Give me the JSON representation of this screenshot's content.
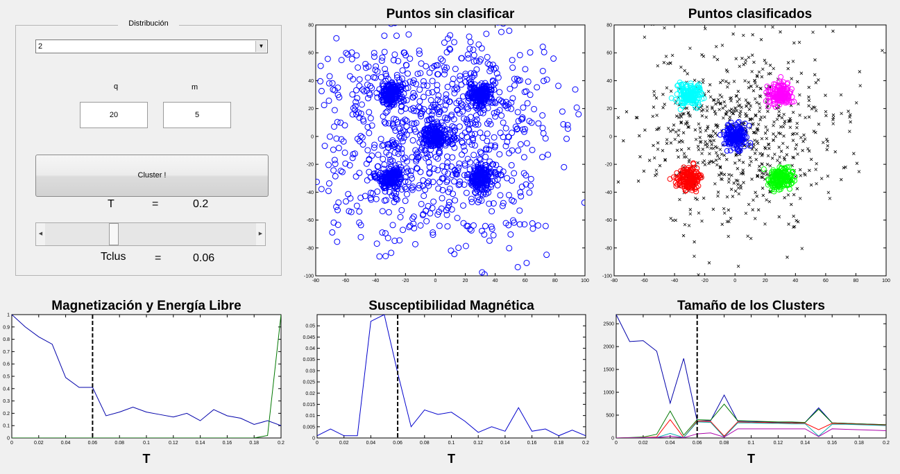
{
  "controls": {
    "group_title": "Distribución",
    "distribution_value": "2",
    "q_label": "q",
    "m_label": "m",
    "q_value": "20",
    "m_value": "5",
    "cluster_button": "Cluster !",
    "T_label": "T",
    "T_eq": "=",
    "T_value": "0.2",
    "Tclus_label": "Tclus",
    "Tclus_eq": "=",
    "Tclus_value": "0.06",
    "slider_level": 0.34
  },
  "chart_data": [
    {
      "type": "scatter",
      "title": "Puntos sin clasificar",
      "xlim": [
        -80,
        100
      ],
      "ylim": [
        -100,
        80
      ],
      "xticks": [
        "-80",
        "-60",
        "-40",
        "-20",
        "0",
        "20",
        "40",
        "60",
        "80",
        "100"
      ],
      "yticks": [
        "-100",
        "-80",
        "-60",
        "-40",
        "-20",
        "0",
        "20",
        "40",
        "60",
        "80"
      ],
      "marker": "circle",
      "color": "#0000ff",
      "cluster_centers": [
        [
          -30,
          30
        ],
        [
          30,
          30
        ],
        [
          0,
          0
        ],
        [
          -30,
          -30
        ],
        [
          30,
          -30
        ]
      ],
      "scatter_spread": 35
    },
    {
      "type": "scatter",
      "title": "Puntos clasificados",
      "xlim": [
        -80,
        100
      ],
      "ylim": [
        -100,
        80
      ],
      "xticks": [
        "-80",
        "-60",
        "-40",
        "-20",
        "0",
        "20",
        "40",
        "60",
        "80",
        "100"
      ],
      "yticks": [
        "-100",
        "-80",
        "-60",
        "-40",
        "-20",
        "0",
        "20",
        "40",
        "60",
        "80"
      ],
      "series": [
        {
          "center": [
            -30,
            30
          ],
          "color": "#00ffff"
        },
        {
          "center": [
            30,
            30
          ],
          "color": "#ff00ff"
        },
        {
          "center": [
            0,
            0
          ],
          "color": "#0000ff"
        },
        {
          "center": [
            -30,
            -30
          ],
          "color": "#ff0000"
        },
        {
          "center": [
            30,
            -30
          ],
          "color": "#00ff00"
        }
      ],
      "noise_color": "#000000"
    },
    {
      "type": "line",
      "title": "Magnetización y Energía Libre",
      "xlabel": "T",
      "xlim": [
        0,
        0.2
      ],
      "ylim": [
        0,
        1
      ],
      "xticks": [
        "0",
        "0.02",
        "0.04",
        "0.06",
        "0.08",
        "0.1",
        "0.12",
        "0.14",
        "0.16",
        "0.18",
        "0.2"
      ],
      "yticks": [
        "0",
        "0.1",
        "0.2",
        "0.3",
        "0.4",
        "0.5",
        "0.6",
        "0.7",
        "0.8",
        "0.9",
        "1"
      ],
      "x": [
        0,
        0.01,
        0.02,
        0.03,
        0.04,
        0.05,
        0.06,
        0.07,
        0.08,
        0.09,
        0.1,
        0.11,
        0.12,
        0.13,
        0.14,
        0.15,
        0.16,
        0.17,
        0.18,
        0.19,
        0.2
      ],
      "series": [
        {
          "color": "#0000aa",
          "values": [
            1.0,
            0.9,
            0.82,
            0.76,
            0.49,
            0.41,
            0.41,
            0.18,
            0.21,
            0.25,
            0.21,
            0.19,
            0.17,
            0.2,
            0.14,
            0.23,
            0.18,
            0.16,
            0.11,
            0.14,
            0.1
          ]
        },
        {
          "color": "#007700",
          "values": [
            0,
            0,
            0,
            0,
            0,
            0,
            0,
            0,
            0,
            0,
            0,
            0,
            0,
            0,
            0,
            0,
            0,
            0,
            0,
            0.02,
            1.0
          ]
        }
      ],
      "vline": 0.06
    },
    {
      "type": "line",
      "title": "Susceptibilidad Magnética",
      "xlabel": "T",
      "xlim": [
        0,
        0.2
      ],
      "ylim": [
        0,
        0.055
      ],
      "xticks": [
        "0",
        "0.02",
        "0.04",
        "0.06",
        "0.08",
        "0.1",
        "0.12",
        "0.14",
        "0.16",
        "0.18",
        "0.2"
      ],
      "yticks": [
        "0",
        "0.005",
        "0.01",
        "0.015",
        "0.02",
        "0.025",
        "0.03",
        "0.035",
        "0.04",
        "0.045",
        "0.05"
      ],
      "x": [
        0,
        0.01,
        0.02,
        0.03,
        0.04,
        0.05,
        0.06,
        0.07,
        0.08,
        0.09,
        0.1,
        0.11,
        0.12,
        0.13,
        0.14,
        0.15,
        0.16,
        0.17,
        0.18,
        0.19,
        0.2
      ],
      "series": [
        {
          "color": "#0000cc",
          "values": [
            0.001,
            0.004,
            0.001,
            0.001,
            0.052,
            0.055,
            0.029,
            0.005,
            0.0125,
            0.0105,
            0.0115,
            0.0075,
            0.0025,
            0.005,
            0.003,
            0.0135,
            0.003,
            0.004,
            0.001,
            0.0035,
            0.001
          ]
        }
      ],
      "vline": 0.06
    },
    {
      "type": "line",
      "title": "Tamaño de los Clusters",
      "xlabel": "T",
      "xlim": [
        0,
        0.2
      ],
      "ylim": [
        0,
        2700
      ],
      "xticks": [
        "0",
        "0.02",
        "0.04",
        "0.06",
        "0.08",
        "0.1",
        "0.12",
        "0.14",
        "0.16",
        "0.18",
        "0.2"
      ],
      "yticks": [
        "0",
        "500",
        "1000",
        "1500",
        "2000",
        "2500"
      ],
      "x": [
        0,
        0.01,
        0.02,
        0.03,
        0.04,
        0.05,
        0.06,
        0.07,
        0.08,
        0.09,
        0.1,
        0.11,
        0.12,
        0.13,
        0.14,
        0.15,
        0.16,
        0.17,
        0.18,
        0.19,
        0.2
      ],
      "series": [
        {
          "color": "#0000aa",
          "values": [
            2700,
            2110,
            2130,
            1900,
            760,
            1740,
            370,
            380,
            940,
            370,
            360,
            350,
            340,
            340,
            340,
            660,
            330,
            320,
            310,
            300,
            290
          ]
        },
        {
          "color": "#007700",
          "values": [
            0,
            10,
            20,
            80,
            590,
            60,
            400,
            390,
            740,
            380,
            370,
            360,
            350,
            350,
            340,
            630,
            330,
            320,
            310,
            300,
            290
          ]
        },
        {
          "color": "#ff0000",
          "values": [
            0,
            5,
            10,
            20,
            400,
            10,
            370,
            360,
            40,
            350,
            340,
            340,
            330,
            330,
            320,
            180,
            320,
            310,
            300,
            290,
            280
          ]
        },
        {
          "color": "#00aaaa",
          "values": [
            0,
            3,
            5,
            10,
            100,
            10,
            350,
            340,
            20,
            330,
            330,
            320,
            320,
            310,
            310,
            40,
            300,
            300,
            290,
            280,
            270
          ]
        },
        {
          "color": "#aa00aa",
          "values": [
            0,
            2,
            3,
            5,
            40,
            5,
            90,
            110,
            20,
            200,
            200,
            200,
            200,
            200,
            200,
            30,
            200,
            190,
            180,
            170,
            160
          ]
        }
      ],
      "vline": 0.06
    }
  ]
}
